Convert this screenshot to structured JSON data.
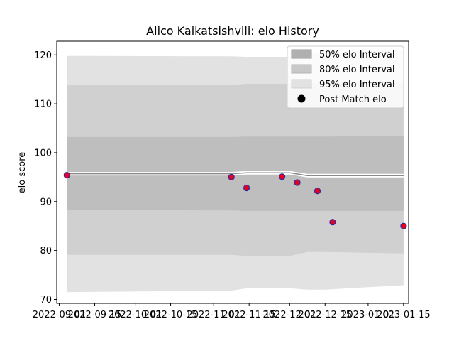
{
  "chart_data": {
    "type": "line",
    "title": "Alico Kaikatsishvili: elo History",
    "xlabel": "",
    "ylabel": "elo score",
    "x_ticks": [
      "2022-09-01",
      "2022-09-15",
      "2022-10-01",
      "2022-10-15",
      "2022-11-01",
      "2022-11-15",
      "2022-12-01",
      "2022-12-15",
      "2023-01-01",
      "2023-01-15"
    ],
    "x_range": [
      "2022-08-31",
      "2023-01-17"
    ],
    "y_ticks": [
      70,
      80,
      90,
      100,
      110,
      120
    ],
    "ylim": [
      69.2,
      122.8
    ],
    "grid": false,
    "legend_position": "top-right",
    "legend": [
      {
        "label": "50% elo Interval",
        "color": "#b0b0b0"
      },
      {
        "label": "80% elo Interval",
        "color": "#c8c8c8"
      },
      {
        "label": "95% elo Interval",
        "color": "#e2e2e2"
      },
      {
        "label": "Post Match elo",
        "color": "#000000"
      }
    ],
    "mean_line": {
      "color": "#8a8a8a",
      "dates": [
        "2022-09-04",
        "2022-11-08",
        "2022-11-14",
        "2022-12-01",
        "2022-12-08",
        "2023-01-15"
      ],
      "values": [
        95.7,
        95.7,
        95.9,
        95.9,
        95.3,
        95.3
      ]
    },
    "bands": [
      {
        "name": "95% elo Interval",
        "color": "#e2e2e2",
        "dates": [
          "2022-09-04",
          "2022-11-08",
          "2022-11-14",
          "2022-12-01",
          "2022-12-08",
          "2022-12-15",
          "2023-01-15"
        ],
        "lower": [
          71.5,
          71.8,
          72.3,
          72.3,
          72.0,
          72.0,
          72.9
        ],
        "upper": [
          119.8,
          119.7,
          119.6,
          119.6,
          120.5,
          120.5,
          121.0
        ]
      },
      {
        "name": "80% elo Interval",
        "color": "#d0d0d0",
        "dates": [
          "2022-09-04",
          "2022-11-08",
          "2022-11-14",
          "2022-12-01",
          "2022-12-08",
          "2022-12-15",
          "2023-01-15"
        ],
        "lower": [
          79.1,
          79.1,
          78.9,
          78.9,
          79.7,
          79.7,
          79.4
        ],
        "upper": [
          113.8,
          113.8,
          114.1,
          114.1,
          114.2,
          114.2,
          114.4
        ]
      },
      {
        "name": "50% elo Interval",
        "color": "#bebebe",
        "dates": [
          "2022-09-04",
          "2022-11-08",
          "2022-11-14",
          "2022-12-01",
          "2022-12-08",
          "2022-12-15",
          "2023-01-15"
        ],
        "lower": [
          88.3,
          88.2,
          88.1,
          88.1,
          88.1,
          88.1,
          88.1
        ],
        "upper": [
          103.2,
          103.2,
          103.3,
          103.3,
          103.3,
          103.3,
          103.4
        ]
      }
    ],
    "series": [
      {
        "name": "Post Match elo",
        "marker_color": "#e8001c",
        "edge_color": "#2a2aa0",
        "dates": [
          "2022-09-04",
          "2022-11-08",
          "2022-11-14",
          "2022-11-28",
          "2022-12-04",
          "2022-12-12",
          "2022-12-18",
          "2023-01-15"
        ],
        "values": [
          95.4,
          95.0,
          92.8,
          95.1,
          93.9,
          92.2,
          85.8,
          85.0
        ]
      }
    ]
  }
}
